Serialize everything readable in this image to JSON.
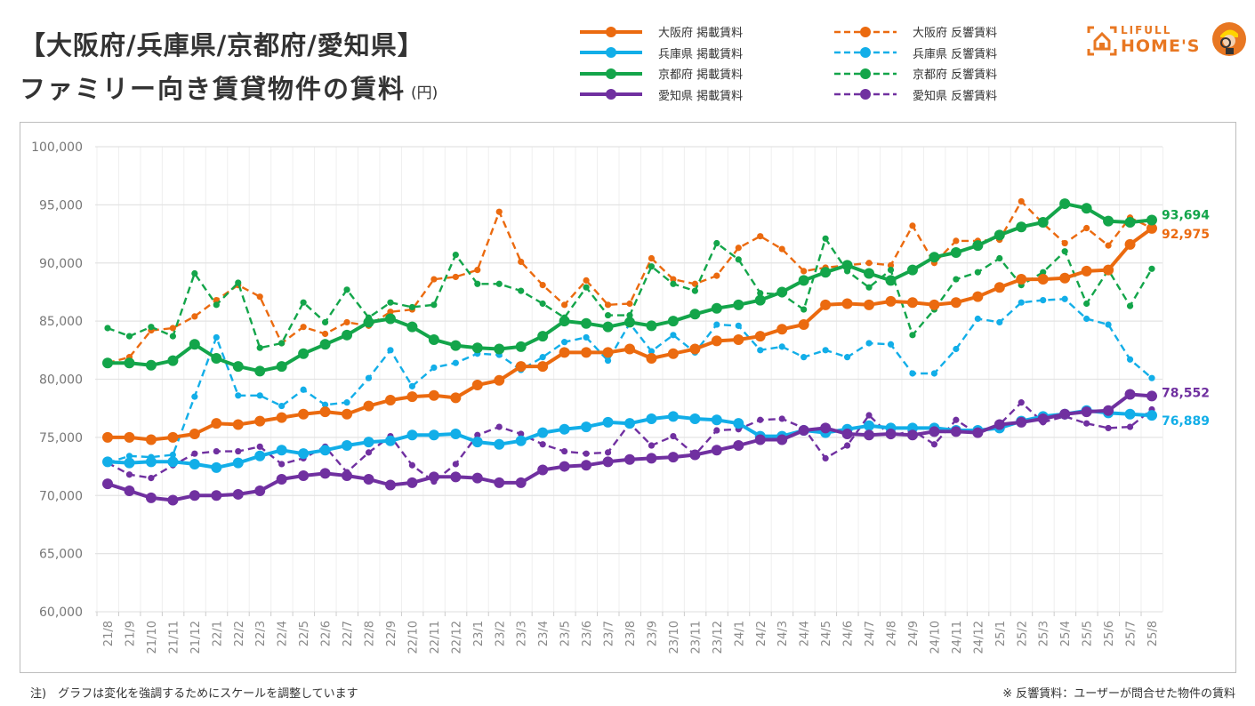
{
  "header": {
    "title_line1": "【大阪府/兵庫県/京都府/愛知県】",
    "title_line2": "ファミリー向き賃貸物件の賃料",
    "unit": "(円)"
  },
  "logo": {
    "line1": "LIFULL",
    "line2": "HOME'S",
    "icon": "house-bracket-icon",
    "mascot": "mascot-magnifier-icon"
  },
  "notes": {
    "left": "注)　グラフは変化を強調するためにスケールを調整しています",
    "right": "※ 反響賃料：ユーザーが問合せた物件の賃料"
  },
  "chart_data": {
    "type": "line",
    "title": "【大阪府/兵庫県/京都府/愛知県】ファミリー向き賃貸物件の賃料(円)",
    "xlabel": "",
    "ylabel": "",
    "ylim": [
      60000,
      100000
    ],
    "yticks": [
      60000,
      65000,
      70000,
      75000,
      80000,
      85000,
      90000,
      95000,
      100000
    ],
    "ytick_labels": [
      "60,000",
      "65,000",
      "70,000",
      "75,000",
      "80,000",
      "85,000",
      "90,000",
      "95,000",
      "100,000"
    ],
    "grid": true,
    "legend_position": "top-right",
    "categories": [
      "21/8",
      "21/9",
      "21/10",
      "21/11",
      "21/12",
      "22/1",
      "22/2",
      "22/3",
      "22/4",
      "22/5",
      "22/6",
      "22/7",
      "22/8",
      "22/9",
      "22/10",
      "22/11",
      "22/12",
      "23/1",
      "23/2",
      "23/3",
      "23/4",
      "23/5",
      "23/6",
      "23/7",
      "23/8",
      "23/9",
      "23/10",
      "23/11",
      "23/12",
      "24/1",
      "24/2",
      "24/3",
      "24/4",
      "24/5",
      "24/6",
      "24/7",
      "24/8",
      "24/9",
      "24/10",
      "24/11",
      "24/12",
      "25/1",
      "25/2",
      "25/3",
      "25/4",
      "25/5",
      "25/6",
      "25/7",
      "25/8"
    ],
    "series": [
      {
        "name": "大阪府 掲載賃料",
        "color": "#eb6a0f",
        "style": "solid",
        "end_label": "92,975",
        "values": [
          75000,
          75000,
          74800,
          75000,
          75300,
          76200,
          76100,
          76400,
          76700,
          77000,
          77200,
          77000,
          77700,
          78200,
          78500,
          78600,
          78400,
          79500,
          79900,
          81100,
          81100,
          82300,
          82300,
          82300,
          82600,
          81800,
          82200,
          82600,
          83300,
          83400,
          83700,
          84300,
          84700,
          86400,
          86500,
          86400,
          86700,
          86600,
          86400,
          86600,
          87100,
          87900,
          88600,
          88600,
          88700,
          89300,
          89400,
          91600,
          92975
        ]
      },
      {
        "name": "兵庫県 掲載賃料",
        "color": "#12aee8",
        "style": "solid",
        "end_label": "76,889",
        "values": [
          72900,
          72800,
          72900,
          72900,
          72700,
          72400,
          72800,
          73400,
          73900,
          73600,
          73900,
          74300,
          74600,
          74700,
          75200,
          75200,
          75300,
          74600,
          74400,
          74700,
          75400,
          75700,
          75900,
          76300,
          76200,
          76600,
          76800,
          76600,
          76500,
          76200,
          75100,
          75100,
          75600,
          75400,
          75700,
          76000,
          75800,
          75800,
          75800,
          75600,
          75600,
          75800,
          76400,
          76800,
          77000,
          77300,
          77100,
          77000,
          76889
        ]
      },
      {
        "name": "京都府 掲載賃料",
        "color": "#13a54a",
        "style": "solid",
        "end_label": "93,694",
        "values": [
          81400,
          81400,
          81200,
          81600,
          83000,
          81800,
          81100,
          80700,
          81100,
          82200,
          83000,
          83800,
          84900,
          85200,
          84500,
          83400,
          82900,
          82700,
          82600,
          82800,
          83700,
          85000,
          84800,
          84500,
          84900,
          84600,
          85000,
          85600,
          86100,
          86400,
          86800,
          87500,
          88500,
          89200,
          89800,
          89100,
          88500,
          89400,
          90500,
          90900,
          91500,
          92400,
          93100,
          93500,
          95100,
          94700,
          93600,
          93500,
          93694
        ]
      },
      {
        "name": "愛知県 掲載賃料",
        "color": "#7030a0",
        "style": "solid",
        "end_label": "78,552",
        "values": [
          71000,
          70400,
          69800,
          69600,
          70000,
          70000,
          70100,
          70400,
          71400,
          71700,
          71900,
          71700,
          71400,
          70900,
          71100,
          71600,
          71600,
          71500,
          71100,
          71100,
          72200,
          72500,
          72600,
          72900,
          73100,
          73200,
          73300,
          73500,
          73900,
          74300,
          74800,
          74800,
          75600,
          75800,
          75300,
          75200,
          75300,
          75200,
          75500,
          75500,
          75400,
          76100,
          76300,
          76600,
          77000,
          77200,
          77300,
          78700,
          78552
        ]
      },
      {
        "name": "大阪府 反響賃料",
        "color": "#eb6a0f",
        "style": "dashed",
        "values": [
          81400,
          81900,
          84200,
          84400,
          85400,
          86800,
          88100,
          87100,
          83100,
          84500,
          83900,
          84900,
          84600,
          85800,
          86000,
          88600,
          88800,
          89400,
          94400,
          90100,
          88100,
          86400,
          88500,
          86400,
          86500,
          90400,
          88600,
          88200,
          88900,
          91300,
          92300,
          91200,
          89300,
          89600,
          89800,
          90000,
          89800,
          93200,
          90000,
          91900,
          91900,
          92000,
          95300,
          93400,
          91700,
          93000,
          91500,
          93900,
          93000
        ]
      },
      {
        "name": "兵庫県 反響賃料",
        "color": "#12aee8",
        "style": "dashed",
        "values": [
          72800,
          73400,
          73300,
          73500,
          78500,
          83600,
          78600,
          78600,
          77700,
          79100,
          77800,
          78000,
          80100,
          82500,
          79400,
          81000,
          81400,
          82200,
          82100,
          80800,
          81900,
          83200,
          83600,
          81600,
          84800,
          82400,
          83800,
          82300,
          84700,
          84600,
          82500,
          82800,
          81900,
          82500,
          81900,
          83100,
          83000,
          80500,
          80500,
          82600,
          85200,
          84900,
          86600,
          86800,
          86900,
          85200,
          84700,
          81700,
          80100
        ]
      },
      {
        "name": "京都府 反響賃料",
        "color": "#13a54a",
        "style": "dashed",
        "values": [
          84400,
          83700,
          84500,
          83700,
          89100,
          86400,
          88300,
          82700,
          83100,
          86600,
          84900,
          87700,
          85300,
          86600,
          86200,
          86400,
          90700,
          88200,
          88200,
          87600,
          86500,
          85300,
          87900,
          85500,
          85500,
          89700,
          88200,
          87600,
          91700,
          90300,
          87400,
          87300,
          86000,
          92100,
          89300,
          87900,
          89400,
          83800,
          86000,
          88600,
          89200,
          90400,
          88100,
          89200,
          91000,
          86500,
          89400,
          86300,
          89500
        ]
      },
      {
        "name": "愛知県 反響賃料",
        "color": "#7030a0",
        "style": "dashed",
        "values": [
          72800,
          71800,
          71500,
          72600,
          73600,
          73800,
          73800,
          74200,
          72700,
          73200,
          74200,
          72000,
          73700,
          75100,
          72600,
          71200,
          72700,
          75200,
          75900,
          75300,
          74400,
          73800,
          73600,
          73700,
          76200,
          74300,
          75100,
          73500,
          75600,
          75700,
          76500,
          76600,
          75800,
          73200,
          74300,
          76900,
          75100,
          75600,
          74400,
          76500,
          75300,
          76100,
          78000,
          76300,
          76800,
          76200,
          75800,
          75900,
          77400
        ]
      }
    ]
  }
}
